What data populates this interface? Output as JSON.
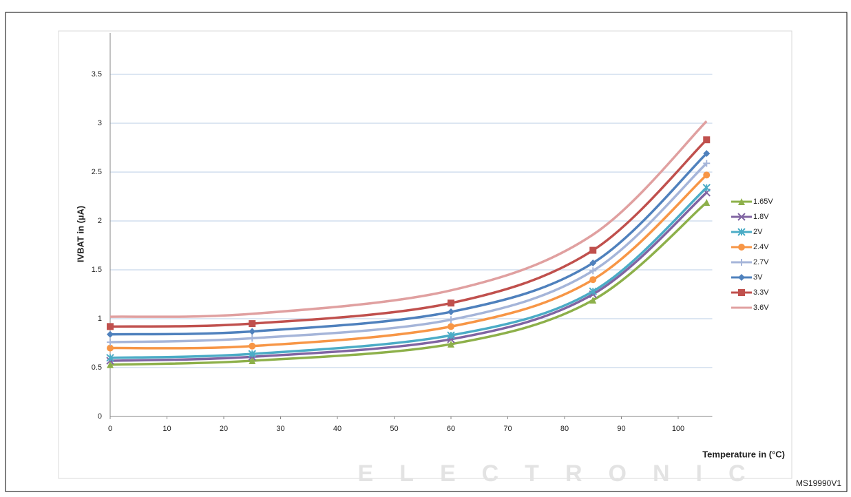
{
  "watermark": {
    "text": "ELECTRONIC"
  },
  "chart_data": {
    "type": "line",
    "y_label": "IVBAT in (µA)",
    "x_label": "Temperature in (°C)",
    "figure_id": "MS19990V1",
    "x": [
      0,
      25,
      60,
      85,
      105
    ],
    "xlim": [
      0,
      106
    ],
    "xticks": [
      0,
      10,
      20,
      30,
      40,
      50,
      60,
      70,
      80,
      90,
      100
    ],
    "ylim": [
      0,
      3.5
    ],
    "yticks": [
      0,
      0.5,
      1,
      1.5,
      2,
      2.5,
      3,
      3.5
    ],
    "grid": true,
    "legend": "right",
    "series": [
      {
        "name": "1.65V",
        "color": "#8db04a",
        "marker": "triangle",
        "values": [
          0.53,
          0.57,
          0.74,
          1.19,
          2.19
        ]
      },
      {
        "name": "1.8V",
        "color": "#8064a2",
        "marker": "x",
        "values": [
          0.57,
          0.61,
          0.79,
          1.25,
          2.29
        ]
      },
      {
        "name": "2V",
        "color": "#4bacc6",
        "marker": "star",
        "values": [
          0.6,
          0.64,
          0.83,
          1.28,
          2.34
        ]
      },
      {
        "name": "2.4V",
        "color": "#f79646",
        "marker": "circle",
        "values": [
          0.7,
          0.72,
          0.92,
          1.4,
          2.47
        ]
      },
      {
        "name": "2.7V",
        "color": "#a5b5d9",
        "marker": "plus",
        "values": [
          0.76,
          0.8,
          0.99,
          1.49,
          2.59
        ]
      },
      {
        "name": "3V",
        "color": "#4f81bd",
        "marker": "diamond",
        "values": [
          0.84,
          0.87,
          1.07,
          1.57,
          2.69
        ]
      },
      {
        "name": "3.3V",
        "color": "#c0504d",
        "marker": "square",
        "values": [
          0.92,
          0.95,
          1.16,
          1.7,
          2.83
        ]
      },
      {
        "name": "3.6V",
        "color": "#e0a0a0",
        "marker": "none",
        "values": [
          1.02,
          1.05,
          1.29,
          1.86,
          3.02
        ]
      }
    ]
  }
}
